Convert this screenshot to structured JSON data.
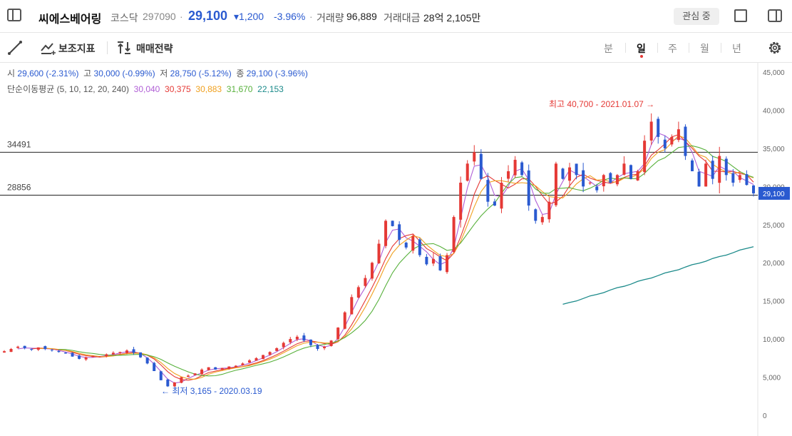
{
  "header": {
    "stock_name": "씨에스베어링",
    "market": "코스닥",
    "code": "297090",
    "price": "29,100",
    "change": "1,200",
    "change_pct": "-3.96%",
    "volume_label": "거래량",
    "volume": "96,889",
    "amount_label": "거래대금",
    "amount": "28억 2,105만",
    "watch_label": "관심 중"
  },
  "toolbar": {
    "indicator_label": "보조지표",
    "trade_label": "매매전략",
    "periods": [
      "분",
      "일",
      "주",
      "월",
      "년"
    ],
    "active_period": "일"
  },
  "ohlc": {
    "open_label": "시",
    "open": "29,600 (-2.31%)",
    "high_label": "고",
    "high": "30,000 (-0.99%)",
    "low_label": "저",
    "low": "28,750 (-5.12%)",
    "close_label": "종",
    "close": "29,100 (-3.96%)"
  },
  "ma": {
    "label": "단순이동평균 (5, 10, 12, 20, 240)",
    "values": [
      "30,040",
      "30,375",
      "30,883",
      "31,670",
      "22,153"
    ],
    "colors": [
      "#b05fd6",
      "#e53935",
      "#f0a01e",
      "#58b13c",
      "#1b8a8a"
    ]
  },
  "colors": {
    "up": "#e53935",
    "down": "#2a5ad0",
    "grid": "#000000"
  },
  "chart_data": {
    "type": "candlestick",
    "y_axis_ticks": [
      "45,000",
      "40,000",
      "35,000",
      "30,000",
      "25,000",
      "20,000",
      "15,000",
      "10,000",
      "5,000",
      "0"
    ],
    "ylim": [
      0,
      45000
    ],
    "current_price_label": "29,100",
    "current_price": 29100,
    "h_lines": [
      {
        "label": "34491",
        "value": 34491
      },
      {
        "label": "28856",
        "value": 28856
      }
    ],
    "max_annotation": {
      "text": "최고 40,700 - 2021.01.07 →",
      "value": 40700
    },
    "min_annotation": {
      "text": "← 최저 3,165 - 2020.03.19",
      "value": 3165
    },
    "close_series": [
      8400,
      8700,
      9000,
      8800,
      8600,
      8900,
      8700,
      8500,
      8300,
      8100,
      7700,
      7400,
      7600,
      7800,
      7700,
      8000,
      8200,
      8300,
      8500,
      8200,
      7600,
      6800,
      5800,
      4600,
      3800,
      4300,
      5000,
      5200,
      5500,
      6000,
      6300,
      6000,
      6200,
      6400,
      6500,
      6800,
      7200,
      7500,
      7900,
      8300,
      8800,
      9500,
      10000,
      10300,
      9800,
      9200,
      8700,
      9000,
      9800,
      11500,
      13500,
      15500,
      16800,
      18000,
      20000,
      22500,
      25500,
      24800,
      23000,
      22000,
      23500,
      21000,
      19800,
      20500,
      19000,
      21000,
      26000,
      30500,
      33000,
      34500,
      31000,
      28000,
      27500,
      30500,
      32000,
      33500,
      31500,
      27500,
      25500,
      26000,
      28000,
      33000,
      31000,
      32500,
      31500,
      30000,
      30500,
      29500,
      31500,
      30500,
      31500,
      33000,
      31000,
      32000,
      36000,
      38500,
      36500,
      35000,
      36500,
      37500,
      34000,
      32000,
      30000,
      33000,
      31000,
      34000,
      31500,
      30500,
      31500,
      30200,
      29100
    ],
    "ma240_range": {
      "start": 14500,
      "end": 22153
    }
  }
}
